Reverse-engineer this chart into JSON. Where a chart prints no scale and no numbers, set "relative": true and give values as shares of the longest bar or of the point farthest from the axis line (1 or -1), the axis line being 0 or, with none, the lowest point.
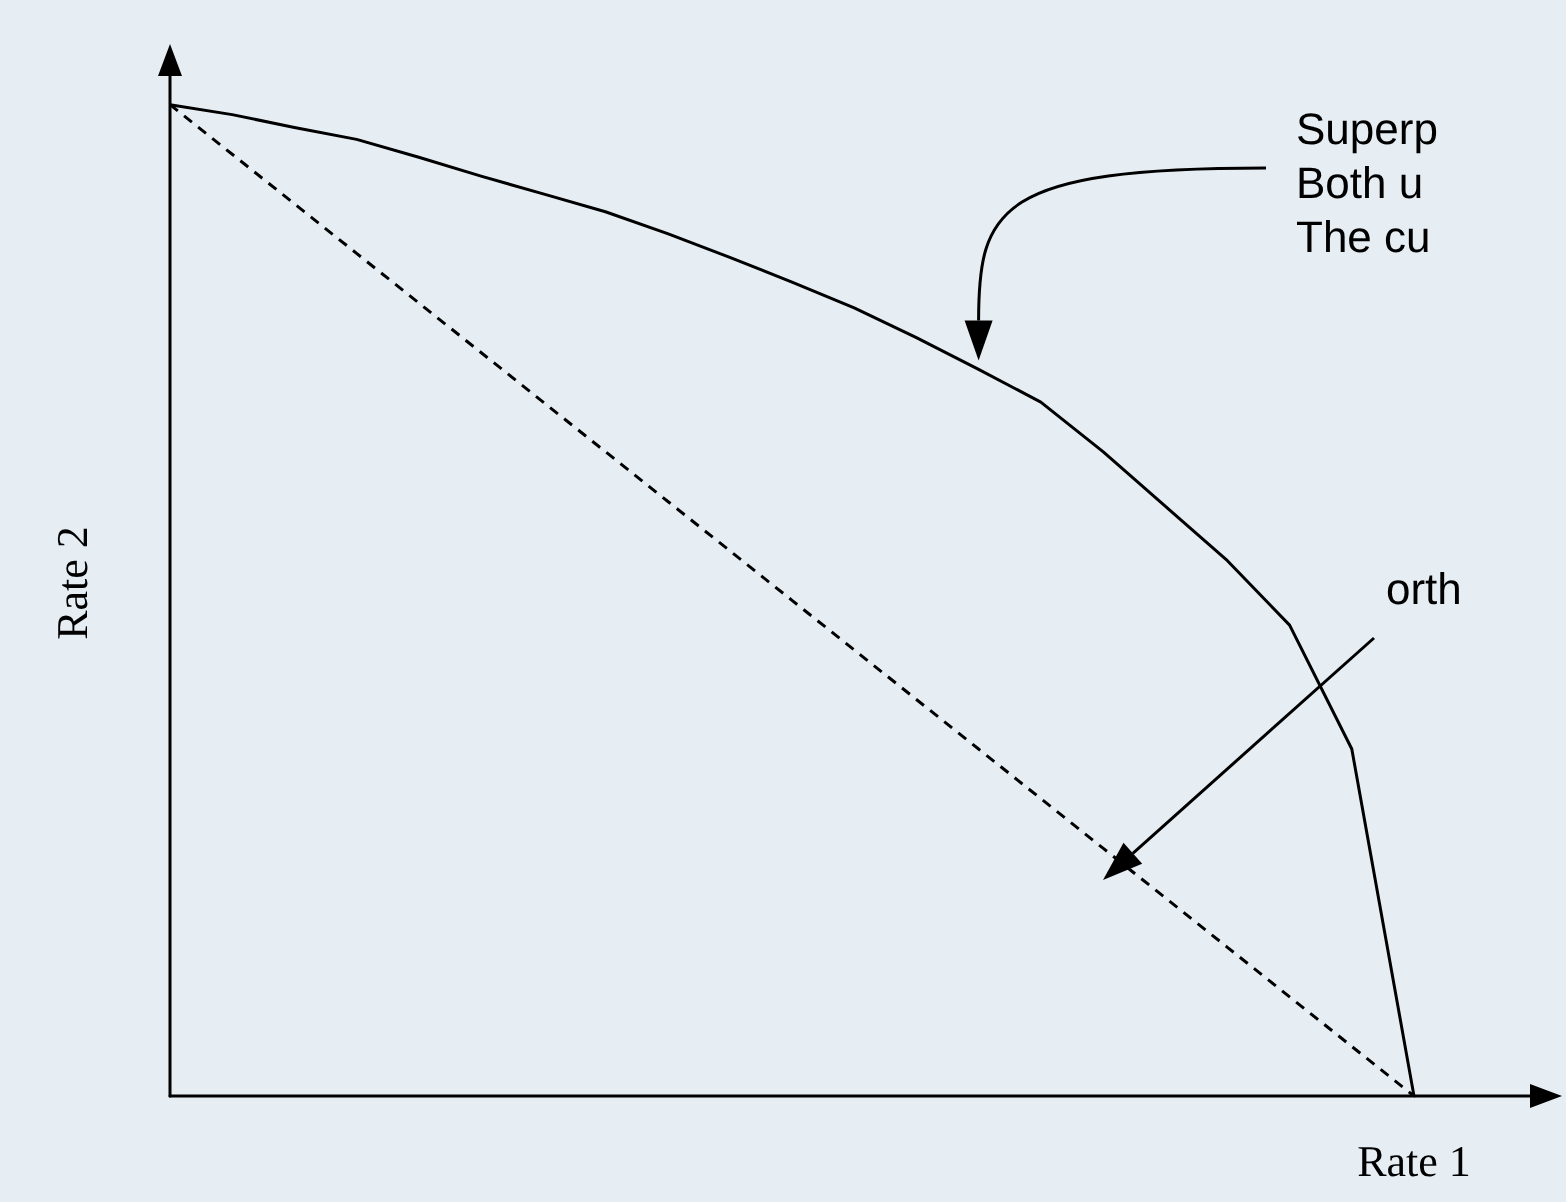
{
  "chart_data": {
    "type": "line",
    "relative": true,
    "xlabel": "Rate 1",
    "ylabel": "Rate 2",
    "marker": "none",
    "categories": [
      null,
      null,
      null,
      null,
      null,
      null,
      null,
      null,
      null,
      null,
      null,
      null,
      null,
      null,
      null,
      null,
      null,
      null,
      null,
      null,
      null
    ],
    "series": [
      {
        "color": "#000000",
        "line_style": "solid",
        "values": [
          1,
          0.99,
          0.977,
          0.965,
          0.947,
          0.928,
          0.91,
          0.892,
          0.87,
          0.846,
          0.821,
          0.795,
          0.765,
          0.733,
          0.7,
          0.65,
          0.595,
          0.54,
          0.475,
          0.35,
          0
        ]
      },
      {
        "color": "#000000",
        "line_style": "dashed",
        "values": [
          1,
          0.95,
          0.9,
          0.85,
          0.8,
          0.75,
          0.7,
          0.65,
          0.6,
          0.55,
          0.5,
          0.45,
          0.4,
          0.35,
          0.3,
          0.25,
          0.2,
          0.15,
          0.1,
          0.05,
          0
        ]
      }
    ],
    "annotations": [
      "Superp\nBoth u\nThe cu",
      "orth"
    ]
  }
}
